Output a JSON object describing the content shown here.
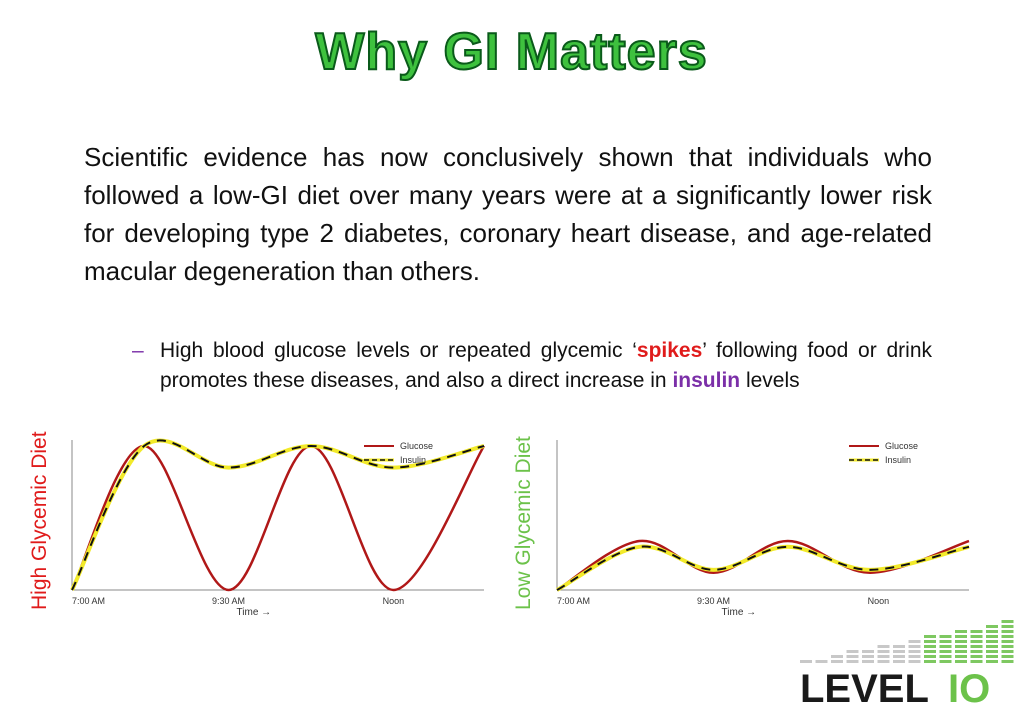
{
  "slide": {
    "title": "Why GI Matters",
    "paragraph": "Scientific evidence has now conclusively shown that individuals who followed a low-GI diet over many years were at a significantly lower risk for developing type 2 diabetes, coronary heart disease, and age-related macular degeneration than others.",
    "bullet_dash": "–",
    "bullet_pre": "High blood glucose levels or repeated glycemic ‘",
    "bullet_spikes": "spikes",
    "bullet_mid": "’ following food or drink promotes these diseases, and also a direct increase in ",
    "bullet_insulin": "insulin",
    "bullet_post": " levels",
    "label_high": "High Glycemic Diet",
    "label_low": "Low Glycemic Diet",
    "logo_text": "LEVEL",
    "logo_text_accent": "IO"
  },
  "colors": {
    "title": "#3ec13e",
    "glucose": "#b01818",
    "insulin_dash": "#f2ea2a",
    "high_label": "#e01b1b",
    "low_label": "#6cc24a",
    "emphasis_spikes": "#e01b1b",
    "emphasis_insulin": "#7b2fa8"
  },
  "chart_data": [
    {
      "type": "line",
      "title": "",
      "xlabel": "Time →",
      "ylabel": "",
      "x_ticks": [
        "7:00 AM",
        "9:30 AM",
        "Noon"
      ],
      "legend_position": "top-right",
      "series": [
        {
          "name": "Glucose",
          "style": "solid",
          "x": [
            0,
            0.175,
            0.38,
            0.58,
            0.78,
            1.0
          ],
          "y": [
            0.0,
            1.0,
            0.0,
            1.0,
            0.0,
            1.0
          ]
        },
        {
          "name": "Insulin",
          "style": "dashed",
          "x": [
            0,
            0.175,
            0.38,
            0.58,
            0.78,
            1.0
          ],
          "y": [
            0.0,
            1.0,
            0.85,
            1.0,
            0.85,
            1.0
          ]
        }
      ]
    },
    {
      "type": "line",
      "title": "",
      "xlabel": "Time →",
      "ylabel": "",
      "x_ticks": [
        "7:00 AM",
        "9:30 AM",
        "Noon"
      ],
      "legend_position": "top-right",
      "series": [
        {
          "name": "Glucose",
          "style": "solid",
          "x": [
            0,
            0.2,
            0.38,
            0.56,
            0.76,
            1.0
          ],
          "y": [
            0.0,
            0.34,
            0.12,
            0.34,
            0.12,
            0.34
          ]
        },
        {
          "name": "Insulin",
          "style": "dashed",
          "x": [
            0,
            0.2,
            0.38,
            0.56,
            0.76,
            1.0
          ],
          "y": [
            0.0,
            0.3,
            0.14,
            0.3,
            0.14,
            0.3
          ]
        }
      ]
    }
  ]
}
